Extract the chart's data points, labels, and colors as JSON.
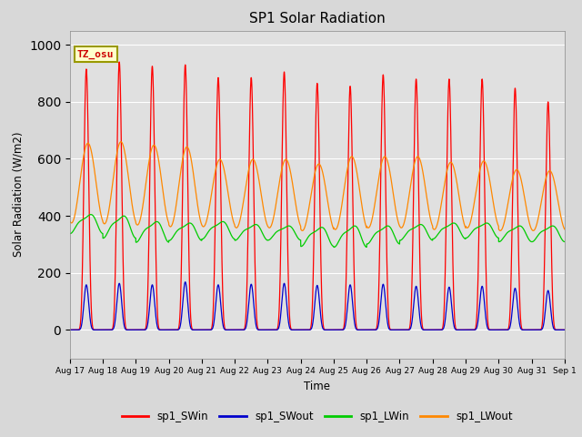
{
  "title": "SP1 Solar Radiation",
  "xlabel": "Time",
  "ylabel": "Solar Radiation (W/m2)",
  "ylim": [
    -100,
    1050
  ],
  "x_tick_labels": [
    "Aug 17",
    "Aug 18",
    "Aug 19",
    "Aug 20",
    "Aug 21",
    "Aug 22",
    "Aug 23",
    "Aug 24",
    "Aug 25",
    "Aug 26",
    "Aug 27",
    "Aug 28",
    "Aug 29",
    "Aug 30",
    "Aug 31",
    "Sep 1"
  ],
  "background_color": "#d8d8d8",
  "plot_bg_color": "#e0e0e0",
  "grid_color": "#ffffff",
  "tz_label": "TZ_osu",
  "tz_box_color": "#ffffcc",
  "tz_text_color": "#cc0000",
  "colors": {
    "sp1_SWin": "#ff0000",
    "sp1_SWout": "#0000cc",
    "sp1_LWin": "#00cc00",
    "sp1_LWout": "#ff8800"
  },
  "sw_in_peaks": [
    915,
    940,
    925,
    930,
    885,
    885,
    905,
    865,
    855,
    895,
    880,
    880,
    880,
    848,
    800
  ],
  "sw_out_peaks": [
    158,
    163,
    158,
    168,
    158,
    160,
    163,
    156,
    158,
    160,
    153,
    150,
    153,
    146,
    138
  ],
  "lw_in_peaks": [
    405,
    400,
    380,
    375,
    380,
    370,
    365,
    360,
    365,
    365,
    370,
    375,
    375,
    365,
    365
  ],
  "lw_in_nights": [
    345,
    330,
    315,
    320,
    325,
    320,
    320,
    300,
    298,
    308,
    320,
    325,
    328,
    315,
    315
  ],
  "lw_out_peaks": [
    655,
    660,
    648,
    642,
    598,
    598,
    598,
    582,
    608,
    608,
    608,
    588,
    592,
    562,
    558
  ],
  "lw_out_nights": [
    375,
    372,
    368,
    362,
    362,
    358,
    358,
    348,
    352,
    358,
    358,
    352,
    358,
    348,
    348
  ],
  "n_days": 15,
  "pts_per_day": 480
}
